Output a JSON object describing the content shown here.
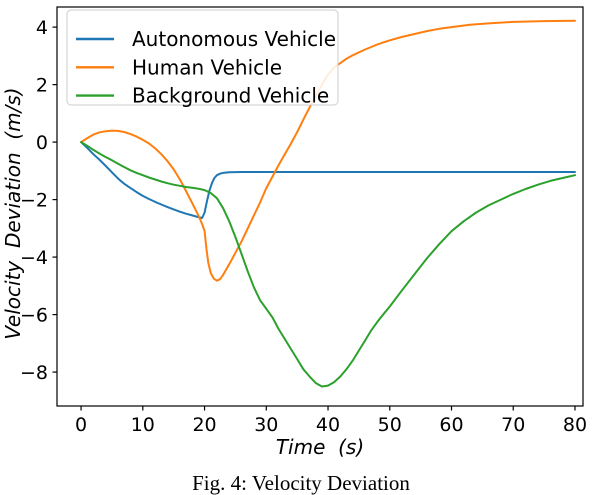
{
  "figure": {
    "caption": "Fig. 4: Velocity Deviation"
  },
  "colors": {
    "autonomous": "#1f77b4",
    "human": "#ff7f0e",
    "background": "#2ca02c",
    "axis": "#000000",
    "text": "#000000",
    "legend_border": "#cccccc",
    "legend_face": "#ffffff"
  },
  "chart_data": {
    "type": "line",
    "title": "",
    "xlabel": "Time  (s)",
    "ylabel": "Velocity  Deviation  (m/s)",
    "xlim": [
      -3.9,
      81.3
    ],
    "ylim": [
      -9.18,
      4.7
    ],
    "xticks": [
      0,
      10,
      20,
      30,
      40,
      50,
      60,
      70,
      80
    ],
    "yticks": [
      4,
      2,
      0,
      -2,
      -4,
      -6,
      -8
    ],
    "grid": false,
    "legend": {
      "position": "upper left",
      "entries": [
        "Autonomous Vehicle",
        "Human Vehicle",
        "Background Vehicle"
      ]
    },
    "series": [
      {
        "name": "Autonomous Vehicle",
        "color": "#1f77b4",
        "points": [
          [
            0,
            0
          ],
          [
            1,
            -0.2
          ],
          [
            2,
            -0.42
          ],
          [
            3,
            -0.62
          ],
          [
            4,
            -0.83
          ],
          [
            5,
            -1.05
          ],
          [
            6,
            -1.27
          ],
          [
            7,
            -1.45
          ],
          [
            8,
            -1.6
          ],
          [
            9,
            -1.74
          ],
          [
            10,
            -1.87
          ],
          [
            11,
            -1.98
          ],
          [
            12,
            -2.08
          ],
          [
            13,
            -2.17
          ],
          [
            14,
            -2.26
          ],
          [
            15,
            -2.34
          ],
          [
            16,
            -2.42
          ],
          [
            17,
            -2.49
          ],
          [
            18,
            -2.55
          ],
          [
            19,
            -2.61
          ],
          [
            19.6,
            -2.64
          ],
          [
            20,
            -2.45
          ],
          [
            20.4,
            -2.05
          ],
          [
            20.8,
            -1.68
          ],
          [
            21.2,
            -1.42
          ],
          [
            21.6,
            -1.25
          ],
          [
            22,
            -1.15
          ],
          [
            22.5,
            -1.1
          ],
          [
            23,
            -1.07
          ],
          [
            24,
            -1.05
          ],
          [
            26,
            -1.04
          ],
          [
            30,
            -1.04
          ],
          [
            40,
            -1.04
          ],
          [
            50,
            -1.04
          ],
          [
            60,
            -1.04
          ],
          [
            70,
            -1.04
          ],
          [
            80,
            -1.04
          ]
        ]
      },
      {
        "name": "Human Vehicle",
        "color": "#ff7f0e",
        "points": [
          [
            0,
            0
          ],
          [
            1,
            0.14
          ],
          [
            2,
            0.26
          ],
          [
            3,
            0.34
          ],
          [
            4,
            0.38
          ],
          [
            5,
            0.4
          ],
          [
            6,
            0.39
          ],
          [
            7,
            0.35
          ],
          [
            8,
            0.28
          ],
          [
            9,
            0.19
          ],
          [
            10,
            0.08
          ],
          [
            11,
            -0.05
          ],
          [
            12,
            -0.22
          ],
          [
            13,
            -0.42
          ],
          [
            14,
            -0.66
          ],
          [
            15,
            -0.95
          ],
          [
            16,
            -1.3
          ],
          [
            17,
            -1.7
          ],
          [
            18,
            -2.12
          ],
          [
            19,
            -2.55
          ],
          [
            19.6,
            -2.85
          ],
          [
            20,
            -3.1
          ],
          [
            20.3,
            -3.7
          ],
          [
            20.6,
            -4.2
          ],
          [
            21,
            -4.55
          ],
          [
            21.5,
            -4.75
          ],
          [
            22,
            -4.82
          ],
          [
            22.5,
            -4.77
          ],
          [
            23,
            -4.62
          ],
          [
            24,
            -4.25
          ],
          [
            25,
            -3.85
          ],
          [
            26,
            -3.45
          ],
          [
            27,
            -3.0
          ],
          [
            28,
            -2.55
          ],
          [
            29,
            -2.1
          ],
          [
            30,
            -1.6
          ],
          [
            31,
            -1.2
          ],
          [
            32,
            -0.8
          ],
          [
            33,
            -0.42
          ],
          [
            34,
            -0.05
          ],
          [
            35,
            0.35
          ],
          [
            36,
            0.78
          ],
          [
            37,
            1.2
          ],
          [
            38,
            1.6
          ],
          [
            39,
            2.0
          ],
          [
            40,
            2.35
          ],
          [
            41,
            2.6
          ],
          [
            42,
            2.75
          ],
          [
            43,
            2.9
          ],
          [
            44,
            3.02
          ],
          [
            46,
            3.22
          ],
          [
            48,
            3.4
          ],
          [
            50,
            3.54
          ],
          [
            52,
            3.66
          ],
          [
            54,
            3.76
          ],
          [
            56,
            3.86
          ],
          [
            58,
            3.94
          ],
          [
            60,
            4.0
          ],
          [
            63,
            4.08
          ],
          [
            66,
            4.13
          ],
          [
            70,
            4.18
          ],
          [
            75,
            4.21
          ],
          [
            80,
            4.22
          ]
        ]
      },
      {
        "name": "Background Vehicle",
        "color": "#2ca02c",
        "points": [
          [
            0,
            0
          ],
          [
            1,
            -0.13
          ],
          [
            2,
            -0.27
          ],
          [
            3,
            -0.4
          ],
          [
            4,
            -0.52
          ],
          [
            5,
            -0.63
          ],
          [
            6,
            -0.75
          ],
          [
            7,
            -0.87
          ],
          [
            8,
            -0.98
          ],
          [
            9,
            -1.07
          ],
          [
            10,
            -1.15
          ],
          [
            11,
            -1.23
          ],
          [
            12,
            -1.3
          ],
          [
            13,
            -1.37
          ],
          [
            14,
            -1.43
          ],
          [
            15,
            -1.48
          ],
          [
            16,
            -1.52
          ],
          [
            17,
            -1.56
          ],
          [
            18,
            -1.59
          ],
          [
            19,
            -1.62
          ],
          [
            20,
            -1.67
          ],
          [
            21,
            -1.77
          ],
          [
            22,
            -1.95
          ],
          [
            23,
            -2.3
          ],
          [
            24,
            -2.75
          ],
          [
            25,
            -3.3
          ],
          [
            26,
            -3.9
          ],
          [
            27,
            -4.5
          ],
          [
            28,
            -5.05
          ],
          [
            29,
            -5.5
          ],
          [
            30,
            -5.8
          ],
          [
            31,
            -6.1
          ],
          [
            32,
            -6.5
          ],
          [
            33,
            -6.85
          ],
          [
            34,
            -7.2
          ],
          [
            35,
            -7.55
          ],
          [
            36,
            -7.9
          ],
          [
            37,
            -8.15
          ],
          [
            38,
            -8.38
          ],
          [
            39,
            -8.5
          ],
          [
            40,
            -8.47
          ],
          [
            41,
            -8.35
          ],
          [
            42,
            -8.15
          ],
          [
            43,
            -7.9
          ],
          [
            44,
            -7.6
          ],
          [
            45,
            -7.25
          ],
          [
            46,
            -6.9
          ],
          [
            47,
            -6.55
          ],
          [
            48,
            -6.25
          ],
          [
            49,
            -5.98
          ],
          [
            50,
            -5.72
          ],
          [
            52,
            -5.15
          ],
          [
            54,
            -4.6
          ],
          [
            56,
            -4.05
          ],
          [
            58,
            -3.55
          ],
          [
            60,
            -3.1
          ],
          [
            62,
            -2.75
          ],
          [
            64,
            -2.45
          ],
          [
            66,
            -2.2
          ],
          [
            68,
            -2.0
          ],
          [
            70,
            -1.8
          ],
          [
            72,
            -1.63
          ],
          [
            74,
            -1.48
          ],
          [
            76,
            -1.35
          ],
          [
            78,
            -1.25
          ],
          [
            80,
            -1.15
          ]
        ]
      }
    ]
  }
}
